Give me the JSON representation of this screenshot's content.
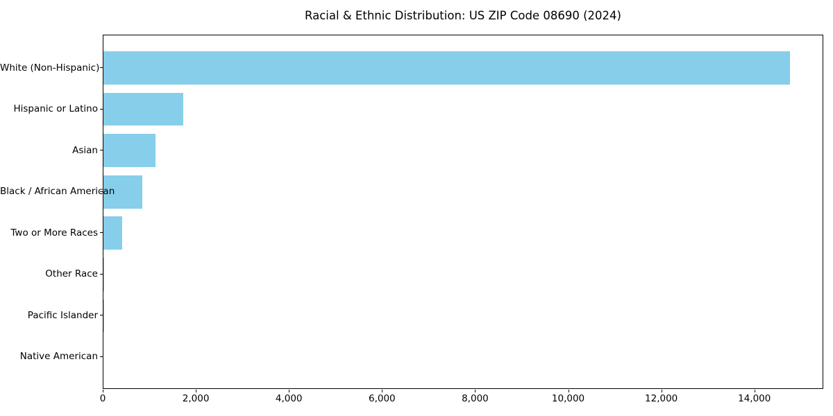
{
  "chart_data": {
    "type": "bar",
    "orientation": "horizontal",
    "title": "Racial & Ethnic Distribution: US ZIP Code 08690 (2024)",
    "categories": [
      "White (Non-Hispanic)",
      "Hispanic or Latino",
      "Asian",
      "Black / African American",
      "Two or More Races",
      "Other Race",
      "Pacific Islander",
      "Native American"
    ],
    "values": [
      14746,
      1716,
      1115,
      835,
      403,
      22,
      8,
      0
    ],
    "xlabel": "",
    "ylabel": "",
    "xlim": [
      0,
      15480
    ],
    "x_ticks": [
      0,
      2000,
      4000,
      6000,
      8000,
      10000,
      12000,
      14000
    ],
    "x_tick_labels": [
      "0",
      "2,000",
      "4,000",
      "6,000",
      "8,000",
      "10,000",
      "12,000",
      "14,000"
    ],
    "bar_color": "#87CEEB",
    "spine_color": "#000000",
    "text_color": "#000000",
    "grid": false,
    "legend": "none",
    "background": "#ffffff"
  }
}
